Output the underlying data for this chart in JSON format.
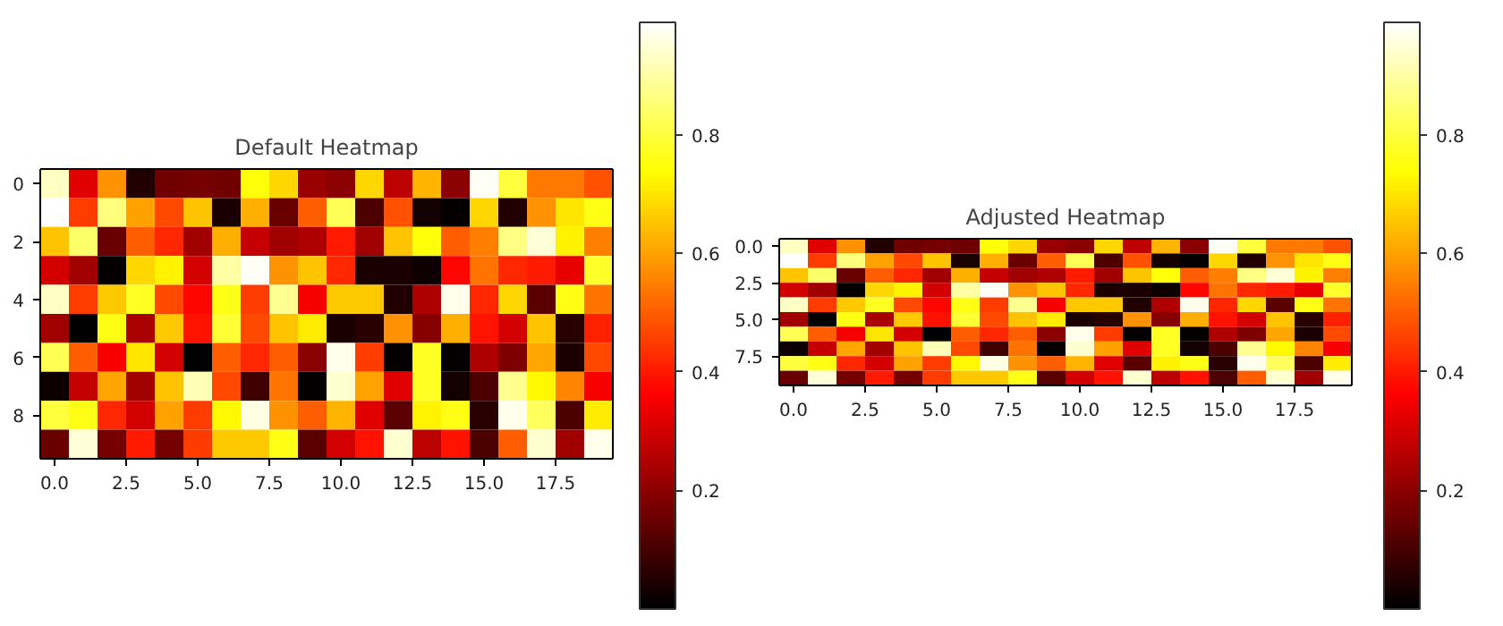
{
  "chart_data": [
    {
      "type": "heatmap",
      "title": "Default Heatmap",
      "x": [
        0,
        1,
        2,
        3,
        4,
        5,
        6,
        7,
        8,
        9,
        10,
        11,
        12,
        13,
        14,
        15,
        16,
        17,
        18,
        19
      ],
      "y": [
        0,
        1,
        2,
        3,
        4,
        5,
        6,
        7,
        8,
        9
      ],
      "cells": [
        [
          0.93,
          0.32,
          0.58,
          0.05,
          0.16,
          0.17,
          0.16,
          0.75,
          0.68,
          0.22,
          0.2,
          0.68,
          0.27,
          0.63,
          0.2,
          0.98,
          0.8,
          0.54,
          0.54,
          0.48
        ],
        [
          0.99,
          0.45,
          0.86,
          0.6,
          0.47,
          0.65,
          0.04,
          0.62,
          0.15,
          0.5,
          0.82,
          0.11,
          0.48,
          0.03,
          0.01,
          0.68,
          0.05,
          0.58,
          0.7,
          0.76
        ],
        [
          0.65,
          0.84,
          0.15,
          0.5,
          0.42,
          0.23,
          0.62,
          0.28,
          0.23,
          0.25,
          0.4,
          0.23,
          0.65,
          0.75,
          0.5,
          0.55,
          0.87,
          0.95,
          0.72,
          0.55
        ],
        [
          0.3,
          0.23,
          0.01,
          0.68,
          0.72,
          0.3,
          0.9,
          0.98,
          0.58,
          0.65,
          0.42,
          0.04,
          0.04,
          0.02,
          0.37,
          0.53,
          0.42,
          0.4,
          0.33,
          0.78
        ],
        [
          0.93,
          0.45,
          0.66,
          0.77,
          0.47,
          0.37,
          0.76,
          0.45,
          0.88,
          0.35,
          0.66,
          0.66,
          0.05,
          0.25,
          0.97,
          0.42,
          0.68,
          0.13,
          0.76,
          0.53
        ],
        [
          0.23,
          0.0,
          0.76,
          0.24,
          0.66,
          0.39,
          0.79,
          0.47,
          0.65,
          0.71,
          0.04,
          0.06,
          0.58,
          0.19,
          0.62,
          0.39,
          0.3,
          0.65,
          0.06,
          0.41
        ],
        [
          0.82,
          0.5,
          0.35,
          0.7,
          0.3,
          0.0,
          0.5,
          0.42,
          0.5,
          0.2,
          0.97,
          0.45,
          0.01,
          0.77,
          0.01,
          0.25,
          0.18,
          0.61,
          0.04,
          0.47
        ],
        [
          0.02,
          0.28,
          0.61,
          0.23,
          0.65,
          0.92,
          0.47,
          0.09,
          0.53,
          0.01,
          0.94,
          0.6,
          0.32,
          0.77,
          0.03,
          0.11,
          0.88,
          0.73,
          0.56,
          0.35
        ],
        [
          0.8,
          0.76,
          0.42,
          0.3,
          0.6,
          0.45,
          0.73,
          0.96,
          0.58,
          0.5,
          0.63,
          0.32,
          0.13,
          0.72,
          0.76,
          0.06,
          0.97,
          0.83,
          0.11,
          0.71
        ],
        [
          0.15,
          0.95,
          0.17,
          0.4,
          0.17,
          0.45,
          0.66,
          0.66,
          0.76,
          0.13,
          0.3,
          0.39,
          0.94,
          0.27,
          0.39,
          0.11,
          0.5,
          0.94,
          0.23,
          0.97
        ]
      ],
      "xlim": [
        -0.5,
        19.5
      ],
      "ylim": [
        9.5,
        -0.5
      ],
      "xticks": [
        {
          "value": 0,
          "label": "0.0"
        },
        {
          "value": 2.5,
          "label": "2.5"
        },
        {
          "value": 5,
          "label": "5.0"
        },
        {
          "value": 7.5,
          "label": "7.5"
        },
        {
          "value": 10,
          "label": "10.0"
        },
        {
          "value": 12.5,
          "label": "12.5"
        },
        {
          "value": 15,
          "label": "15.0"
        },
        {
          "value": 17.5,
          "label": "17.5"
        }
      ],
      "yticks": [
        0,
        2,
        4,
        6,
        8
      ],
      "clim": [
        0.0,
        0.99
      ],
      "cticks": [
        0.2,
        0.4,
        0.6,
        0.8
      ]
    },
    {
      "type": "heatmap",
      "title": "Adjusted Heatmap",
      "x": [
        0,
        1,
        2,
        3,
        4,
        5,
        6,
        7,
        8,
        9,
        10,
        11,
        12,
        13,
        14,
        15,
        16,
        17,
        18,
        19
      ],
      "y": [
        0,
        1,
        2,
        3,
        4,
        5,
        6,
        7,
        8,
        9
      ],
      "cells": [
        [
          0.93,
          0.32,
          0.58,
          0.05,
          0.16,
          0.17,
          0.16,
          0.75,
          0.68,
          0.22,
          0.2,
          0.68,
          0.27,
          0.63,
          0.2,
          0.98,
          0.8,
          0.54,
          0.54,
          0.48
        ],
        [
          0.99,
          0.45,
          0.86,
          0.6,
          0.47,
          0.65,
          0.04,
          0.62,
          0.15,
          0.5,
          0.82,
          0.11,
          0.48,
          0.03,
          0.01,
          0.68,
          0.05,
          0.58,
          0.7,
          0.76
        ],
        [
          0.65,
          0.84,
          0.15,
          0.5,
          0.42,
          0.23,
          0.62,
          0.28,
          0.23,
          0.25,
          0.4,
          0.23,
          0.65,
          0.75,
          0.5,
          0.55,
          0.87,
          0.95,
          0.72,
          0.55
        ],
        [
          0.3,
          0.23,
          0.01,
          0.68,
          0.72,
          0.3,
          0.9,
          0.98,
          0.58,
          0.65,
          0.42,
          0.04,
          0.04,
          0.02,
          0.37,
          0.53,
          0.42,
          0.4,
          0.33,
          0.78
        ],
        [
          0.93,
          0.45,
          0.66,
          0.77,
          0.47,
          0.37,
          0.76,
          0.45,
          0.88,
          0.35,
          0.66,
          0.66,
          0.05,
          0.25,
          0.97,
          0.42,
          0.68,
          0.13,
          0.76,
          0.53
        ],
        [
          0.23,
          0.0,
          0.76,
          0.24,
          0.66,
          0.39,
          0.79,
          0.47,
          0.65,
          0.71,
          0.04,
          0.06,
          0.58,
          0.19,
          0.62,
          0.39,
          0.3,
          0.65,
          0.06,
          0.41
        ],
        [
          0.82,
          0.5,
          0.35,
          0.7,
          0.3,
          0.0,
          0.5,
          0.42,
          0.5,
          0.2,
          0.97,
          0.45,
          0.01,
          0.77,
          0.01,
          0.25,
          0.18,
          0.61,
          0.04,
          0.47
        ],
        [
          0.02,
          0.28,
          0.61,
          0.23,
          0.65,
          0.92,
          0.47,
          0.09,
          0.53,
          0.01,
          0.94,
          0.6,
          0.32,
          0.77,
          0.03,
          0.11,
          0.88,
          0.73,
          0.56,
          0.35
        ],
        [
          0.8,
          0.76,
          0.42,
          0.3,
          0.6,
          0.45,
          0.73,
          0.96,
          0.58,
          0.5,
          0.63,
          0.32,
          0.13,
          0.72,
          0.76,
          0.06,
          0.97,
          0.83,
          0.11,
          0.71
        ],
        [
          0.15,
          0.95,
          0.17,
          0.4,
          0.17,
          0.45,
          0.66,
          0.66,
          0.76,
          0.13,
          0.3,
          0.39,
          0.94,
          0.27,
          0.39,
          0.11,
          0.5,
          0.94,
          0.23,
          0.97
        ]
      ],
      "xlim": [
        -0.5,
        19.5
      ],
      "ylim": [
        9.5,
        -0.5
      ],
      "xticks": [
        {
          "value": 0,
          "label": "0.0"
        },
        {
          "value": 2.5,
          "label": "2.5"
        },
        {
          "value": 5,
          "label": "5.0"
        },
        {
          "value": 7.5,
          "label": "7.5"
        },
        {
          "value": 10,
          "label": "10.0"
        },
        {
          "value": 12.5,
          "label": "12.5"
        },
        {
          "value": 15,
          "label": "15.0"
        },
        {
          "value": 17.5,
          "label": "17.5"
        }
      ],
      "yticks": [
        {
          "value": 0,
          "label": "0.0"
        },
        {
          "value": 2.5,
          "label": "2.5"
        },
        {
          "value": 5,
          "label": "5.0"
        },
        {
          "value": 7.5,
          "label": "7.5"
        }
      ],
      "clim": [
        0.0,
        0.99
      ],
      "cticks": [
        0.2,
        0.4,
        0.6,
        0.8
      ]
    }
  ]
}
